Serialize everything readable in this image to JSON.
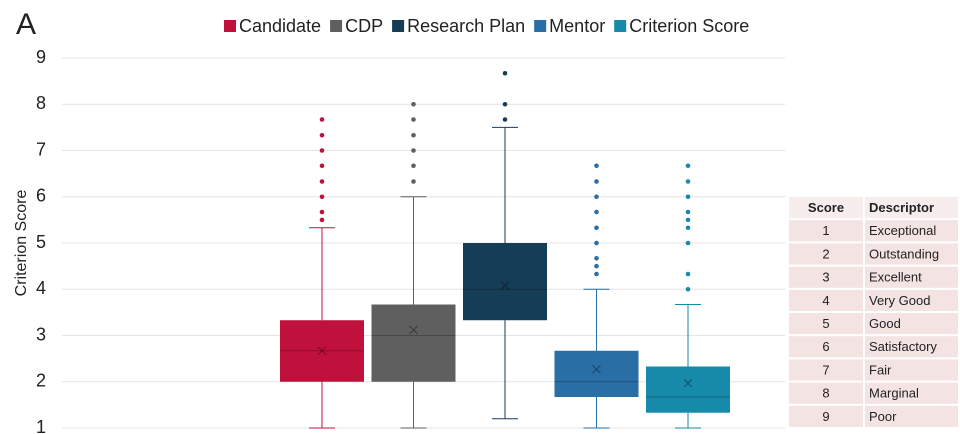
{
  "panel_label": "A",
  "chart_data": {
    "type": "box",
    "ylabel": "Criterion Score",
    "ylim": [
      1,
      9
    ],
    "yticks": [
      1,
      2,
      3,
      4,
      5,
      6,
      7,
      8,
      9
    ],
    "grid": true,
    "legend": "top",
    "series": [
      {
        "name": "Candidate",
        "color": "#c0103c",
        "whisker_low": 1,
        "q1": 2,
        "median": 2.67,
        "q3": 3.33,
        "whisker_high": 5.33,
        "mean": 2.67,
        "outliers": [
          5.5,
          5.67,
          6,
          6.33,
          6.67,
          7,
          7.33,
          7.67
        ]
      },
      {
        "name": "CDP",
        "color": "#5f5f5f",
        "whisker_low": 1,
        "q1": 2,
        "median": 3,
        "q3": 3.67,
        "whisker_high": 6,
        "mean": 3.12,
        "outliers": [
          6.33,
          6.67,
          7,
          7.33,
          7.67,
          8
        ]
      },
      {
        "name": "Research Plan",
        "color": "#163d56",
        "whisker_low": 1.2,
        "q1": 3.33,
        "median": 4,
        "q3": 5,
        "whisker_high": 7.5,
        "mean": 4.08,
        "outliers": [
          7.67,
          8,
          8.67
        ]
      },
      {
        "name": "Mentor",
        "color": "#2a6ea6",
        "whisker_low": 1,
        "q1": 1.67,
        "median": 2,
        "q3": 2.67,
        "whisker_high": 4,
        "mean": 2.27,
        "outliers": [
          4.33,
          4.5,
          4.67,
          5,
          5.33,
          5.67,
          6,
          6.33,
          6.67
        ]
      },
      {
        "name": "Criterion Score",
        "color": "#168aa8",
        "whisker_low": 1,
        "q1": 1.33,
        "median": 1.67,
        "q3": 2.33,
        "whisker_high": 3.67,
        "mean": 1.97,
        "outliers": [
          4,
          4.33,
          5,
          5.33,
          5.5,
          5.67,
          6,
          6.33,
          6.67
        ]
      }
    ]
  },
  "table": {
    "header": [
      "Score",
      "Descriptor"
    ],
    "rows": [
      [
        "1",
        "Exceptional"
      ],
      [
        "2",
        "Outstanding"
      ],
      [
        "3",
        "Excellent"
      ],
      [
        "4",
        "Very Good"
      ],
      [
        "5",
        "Good"
      ],
      [
        "6",
        "Satisfactory"
      ],
      [
        "7",
        "Fair"
      ],
      [
        "8",
        "Marginal"
      ],
      [
        "9",
        "Poor"
      ]
    ]
  }
}
